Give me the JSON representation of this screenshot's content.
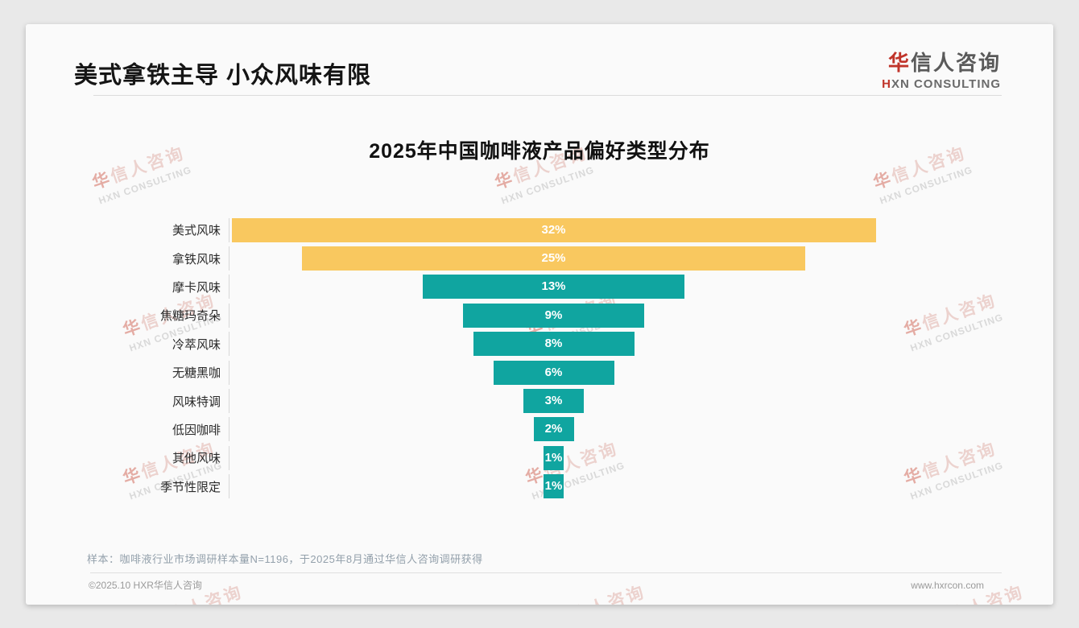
{
  "header": {
    "title": "美式拿铁主导 小众风味有限"
  },
  "logo": {
    "zh_first": "华",
    "zh_rest": "信人咨询",
    "en_first": "H",
    "en_rest": "XN CONSULTING"
  },
  "watermark": {
    "zh_first": "华",
    "zh_rest": "信人咨询",
    "en": "HXN CONSULTING"
  },
  "chart_data": {
    "type": "bar",
    "variant": "horizontal-centered-funnel",
    "title": "2025年中国咖啡液产品偏好类型分布",
    "categories": [
      "美式风味",
      "拿铁风味",
      "摩卡风味",
      "焦糖玛奇朵",
      "冷萃风味",
      "无糖黑咖",
      "风味特调",
      "低因咖啡",
      "其他风味",
      "季节性限定"
    ],
    "values": [
      32,
      25,
      13,
      9,
      8,
      6,
      3,
      2,
      1,
      1
    ],
    "value_labels": [
      "32%",
      "25%",
      "13%",
      "9%",
      "8%",
      "6%",
      "3%",
      "2%",
      "1%",
      "1%"
    ],
    "unit": "%",
    "highlight_count": 2,
    "colors": {
      "highlight": "#F9C85F",
      "base": "#10A5A0",
      "value_text": "#ffffff"
    },
    "legend": null,
    "grid": false,
    "axis": "single vertical baseline at left of bars"
  },
  "footnote": "样本：咖啡液行业市场调研样本量N=1196，于2025年8月通过华信人咨询调研获得",
  "footer": {
    "left": "©2025.10 HXR华信人咨询",
    "right": "www.hxrcon.com"
  }
}
